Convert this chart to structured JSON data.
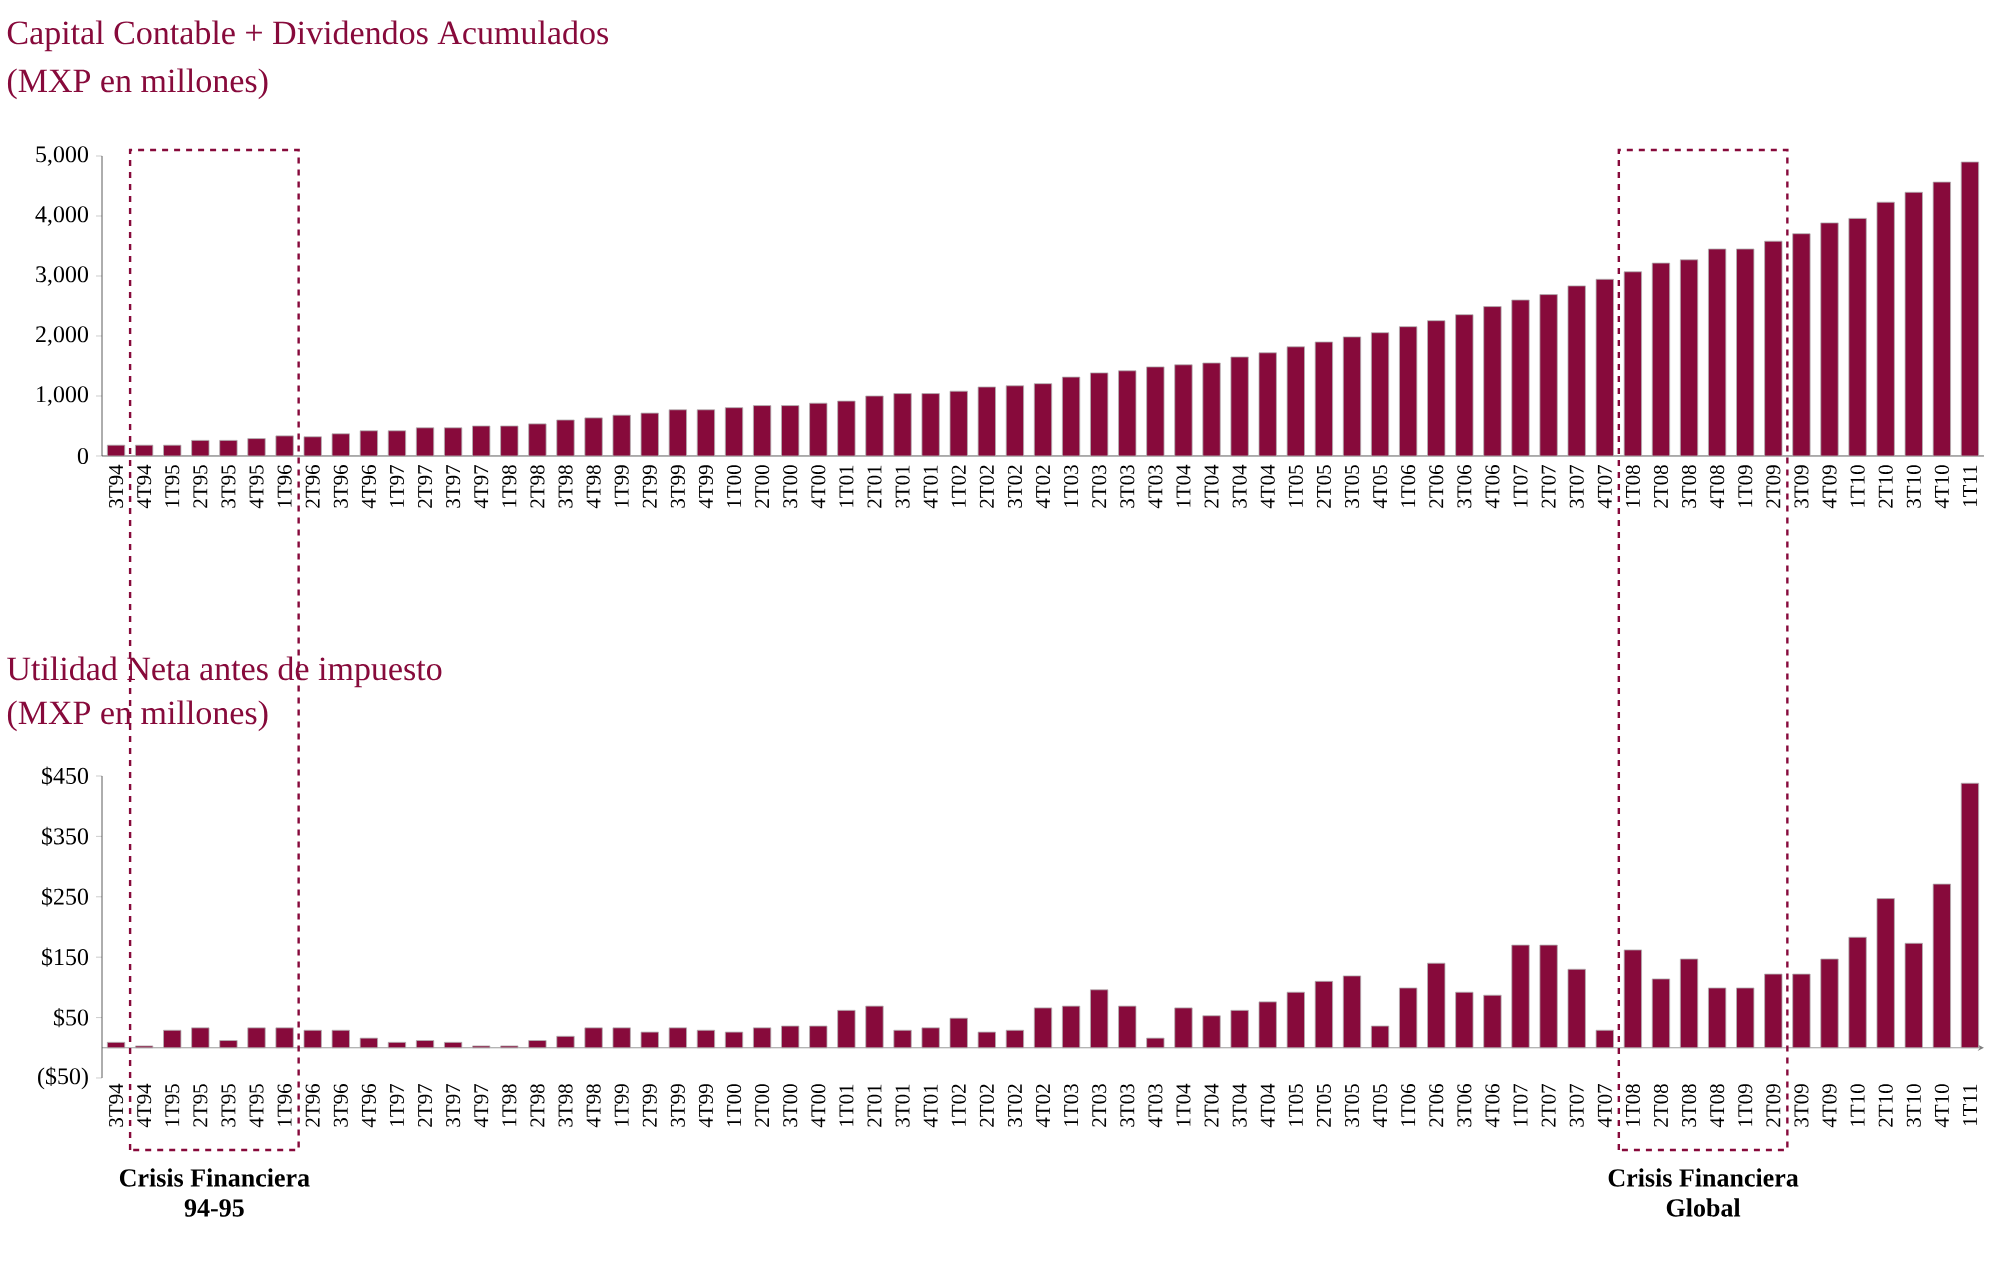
{
  "chart_data": [
    {
      "type": "bar",
      "title": "Capital Contable + Dividendos Acumulados",
      "subtitle": "(MXP en millones)",
      "categories": [
        "3T94",
        "4T94",
        "1T95",
        "2T95",
        "3T95",
        "4T95",
        "1T96",
        "2T96",
        "3T96",
        "4T96",
        "1T97",
        "2T97",
        "3T97",
        "4T97",
        "1T98",
        "2T98",
        "3T98",
        "4T98",
        "1T99",
        "2T99",
        "3T99",
        "4T99",
        "1T00",
        "2T00",
        "3T00",
        "4T00",
        "1T01",
        "2T01",
        "3T01",
        "4T01",
        "1T02",
        "2T02",
        "3T02",
        "4T02",
        "1T03",
        "2T03",
        "3T03",
        "4T03",
        "1T04",
        "2T04",
        "3T04",
        "4T04",
        "1T05",
        "2T05",
        "3T05",
        "4T05",
        "1T06",
        "2T06",
        "3T06",
        "4T06",
        "1T07",
        "2T07",
        "3T07",
        "4T07",
        "1T08",
        "2T08",
        "3T08",
        "4T08",
        "1T09",
        "2T09",
        "3T09",
        "4T09",
        "1T10",
        "2T10",
        "3T10",
        "4T10",
        "1T11"
      ],
      "values": [
        180,
        180,
        180,
        260,
        260,
        290,
        335,
        320,
        370,
        420,
        420,
        470,
        470,
        500,
        500,
        535,
        600,
        635,
        680,
        715,
        770,
        770,
        805,
        840,
        840,
        880,
        915,
        1000,
        1040,
        1040,
        1080,
        1150,
        1170,
        1205,
        1315,
        1385,
        1420,
        1485,
        1520,
        1550,
        1650,
        1720,
        1820,
        1900,
        1985,
        2055,
        2155,
        2255,
        2355,
        2490,
        2600,
        2690,
        2835,
        2945,
        3070,
        3215,
        3270,
        3450,
        3450,
        3580,
        3705,
        3885,
        3960,
        4230,
        4395,
        4565,
        4900
      ],
      "color": "#870A3B",
      "ylim": [
        0,
        5000
      ],
      "yticks": [
        0,
        {
          "value": 1000,
          "label": "1,000"
        },
        {
          "value": 2000,
          "label": "2,000"
        },
        {
          "value": 3000,
          "label": "3,000"
        },
        {
          "value": 4000,
          "label": "4,000"
        },
        {
          "value": 5000,
          "label": "5,000"
        }
      ]
    },
    {
      "type": "bar",
      "title": "Utilidad Neta antes de impuesto",
      "subtitle": "(MXP en millones)",
      "categories": [
        "3T94",
        "4T94",
        "1T95",
        "2T95",
        "3T95",
        "4T95",
        "1T96",
        "2T96",
        "3T96",
        "4T96",
        "1T97",
        "2T97",
        "3T97",
        "4T97",
        "1T98",
        "2T98",
        "3T98",
        "4T98",
        "1T99",
        "2T99",
        "3T99",
        "4T99",
        "1T00",
        "2T00",
        "3T00",
        "4T00",
        "1T01",
        "2T01",
        "3T01",
        "4T01",
        "1T02",
        "2T02",
        "3T02",
        "4T02",
        "1T03",
        "2T03",
        "3T03",
        "4T03",
        "1T04",
        "2T04",
        "3T04",
        "4T04",
        "1T05",
        "2T05",
        "3T05",
        "4T05",
        "1T06",
        "2T06",
        "3T06",
        "4T06",
        "1T07",
        "2T07",
        "3T07",
        "4T07",
        "1T08",
        "2T08",
        "3T08",
        "4T08",
        "1T09",
        "2T09",
        "3T09",
        "4T09",
        "1T10",
        "2T10",
        "3T10",
        "4T10",
        "1T11"
      ],
      "values": [
        9,
        3,
        29,
        33,
        12,
        33,
        33,
        29,
        29,
        16,
        9,
        12,
        9,
        3,
        3,
        12,
        19,
        33,
        33,
        26,
        33,
        29,
        26,
        33,
        36,
        36,
        62,
        69,
        29,
        33,
        49,
        26,
        29,
        66,
        69,
        96,
        69,
        16,
        66,
        53,
        62,
        76,
        92,
        110,
        119,
        36,
        99,
        140,
        92,
        87,
        170,
        170,
        130,
        29,
        162,
        114,
        147,
        99,
        99,
        122,
        122,
        147,
        183,
        247,
        173,
        271,
        438
      ],
      "color": "#870A3B",
      "ylim": [
        -50,
        450
      ],
      "yticks": [
        {
          "value": -50,
          "label": "($50)"
        },
        {
          "value": 50,
          "label": "$50"
        },
        {
          "value": 150,
          "label": "$150"
        },
        {
          "value": 250,
          "label": "$250"
        },
        {
          "value": 350,
          "label": "$350"
        },
        {
          "value": 450,
          "label": "$450"
        }
      ],
      "annotations": [
        "Crisis Financiera 94-95",
        "Crisis Financiera Global"
      ]
    }
  ]
}
